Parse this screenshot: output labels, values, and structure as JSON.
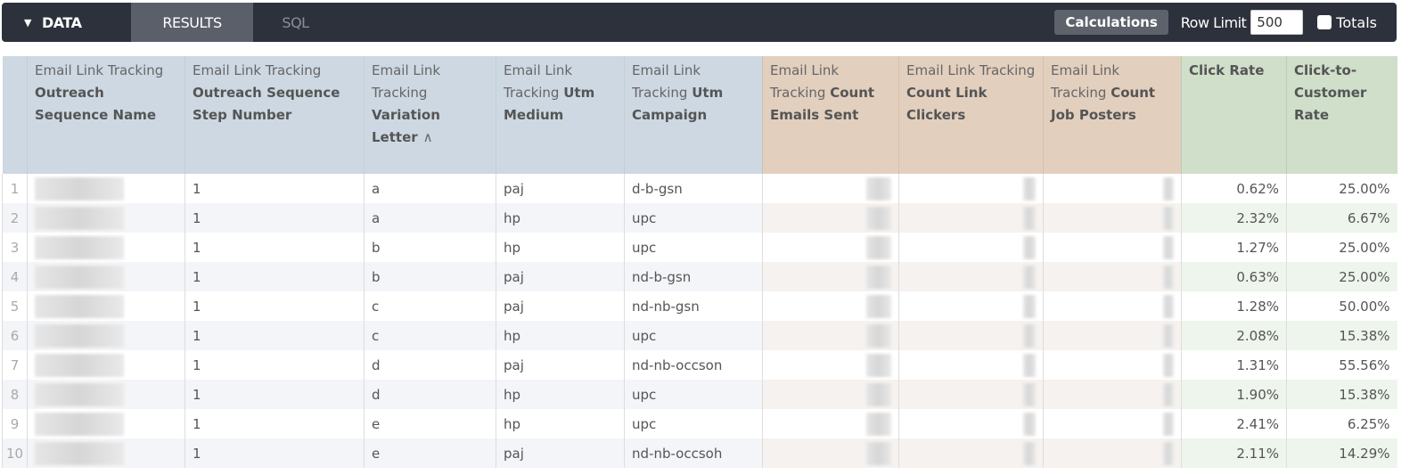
{
  "toolbar": {
    "data_tab": "DATA",
    "results_tab": "RESULTS",
    "sql_tab": "SQL",
    "calculations": "Calculations",
    "row_limit_label": "Row Limit",
    "row_limit_value": "500",
    "totals_label": "Totals",
    "totals_checked": false
  },
  "columns": [
    {
      "light": "Email Link Tracking",
      "bold": "Outreach Sequence Name",
      "group": "d"
    },
    {
      "light": "Email Link Tracking",
      "bold": "Outreach Sequence Step Number",
      "group": "d"
    },
    {
      "light": "Email Link Tracking",
      "bold": "Variation Letter",
      "sort": "∧",
      "group": "d"
    },
    {
      "light": "Email Link Tracking",
      "bold": "Utm Medium",
      "group": "d"
    },
    {
      "light": "Email Link Tracking",
      "bold": "Utm Campaign",
      "group": "d"
    },
    {
      "light": "Email Link Tracking",
      "bold": "Count Emails Sent",
      "group": "m"
    },
    {
      "light": "Email Link Tracking",
      "bold": "Count Link Clickers",
      "group": "m"
    },
    {
      "light": "Email Link Tracking",
      "bold": "Count Job Posters",
      "group": "m"
    },
    {
      "light": "",
      "bold": "Click Rate",
      "group": "c"
    },
    {
      "light": "",
      "bold": "Click-to-Customer Rate",
      "group": "c"
    }
  ],
  "rows": [
    {
      "n": "1",
      "step": "1",
      "letter": "a",
      "medium": "paj",
      "campaign": "d-b-gsn",
      "click_rate": "0.62%",
      "ctc_rate": "25.00%"
    },
    {
      "n": "2",
      "step": "1",
      "letter": "a",
      "medium": "hp",
      "campaign": "upc",
      "click_rate": "2.32%",
      "ctc_rate": "6.67%"
    },
    {
      "n": "3",
      "step": "1",
      "letter": "b",
      "medium": "hp",
      "campaign": "upc",
      "click_rate": "1.27%",
      "ctc_rate": "25.00%"
    },
    {
      "n": "4",
      "step": "1",
      "letter": "b",
      "medium": "paj",
      "campaign": "nd-b-gsn",
      "click_rate": "0.63%",
      "ctc_rate": "25.00%"
    },
    {
      "n": "5",
      "step": "1",
      "letter": "c",
      "medium": "paj",
      "campaign": "nd-nb-gsn",
      "click_rate": "1.28%",
      "ctc_rate": "50.00%"
    },
    {
      "n": "6",
      "step": "1",
      "letter": "c",
      "medium": "hp",
      "campaign": "upc",
      "click_rate": "2.08%",
      "ctc_rate": "15.38%"
    },
    {
      "n": "7",
      "step": "1",
      "letter": "d",
      "medium": "paj",
      "campaign": "nd-nb-occson",
      "click_rate": "1.31%",
      "ctc_rate": "55.56%"
    },
    {
      "n": "8",
      "step": "1",
      "letter": "d",
      "medium": "hp",
      "campaign": "upc",
      "click_rate": "1.90%",
      "ctc_rate": "15.38%"
    },
    {
      "n": "9",
      "step": "1",
      "letter": "e",
      "medium": "hp",
      "campaign": "upc",
      "click_rate": "2.41%",
      "ctc_rate": "6.25%"
    },
    {
      "n": "10",
      "step": "1",
      "letter": "e",
      "medium": "paj",
      "campaign": "nd-nb-occsoh",
      "click_rate": "2.11%",
      "ctc_rate": "14.29%"
    }
  ]
}
